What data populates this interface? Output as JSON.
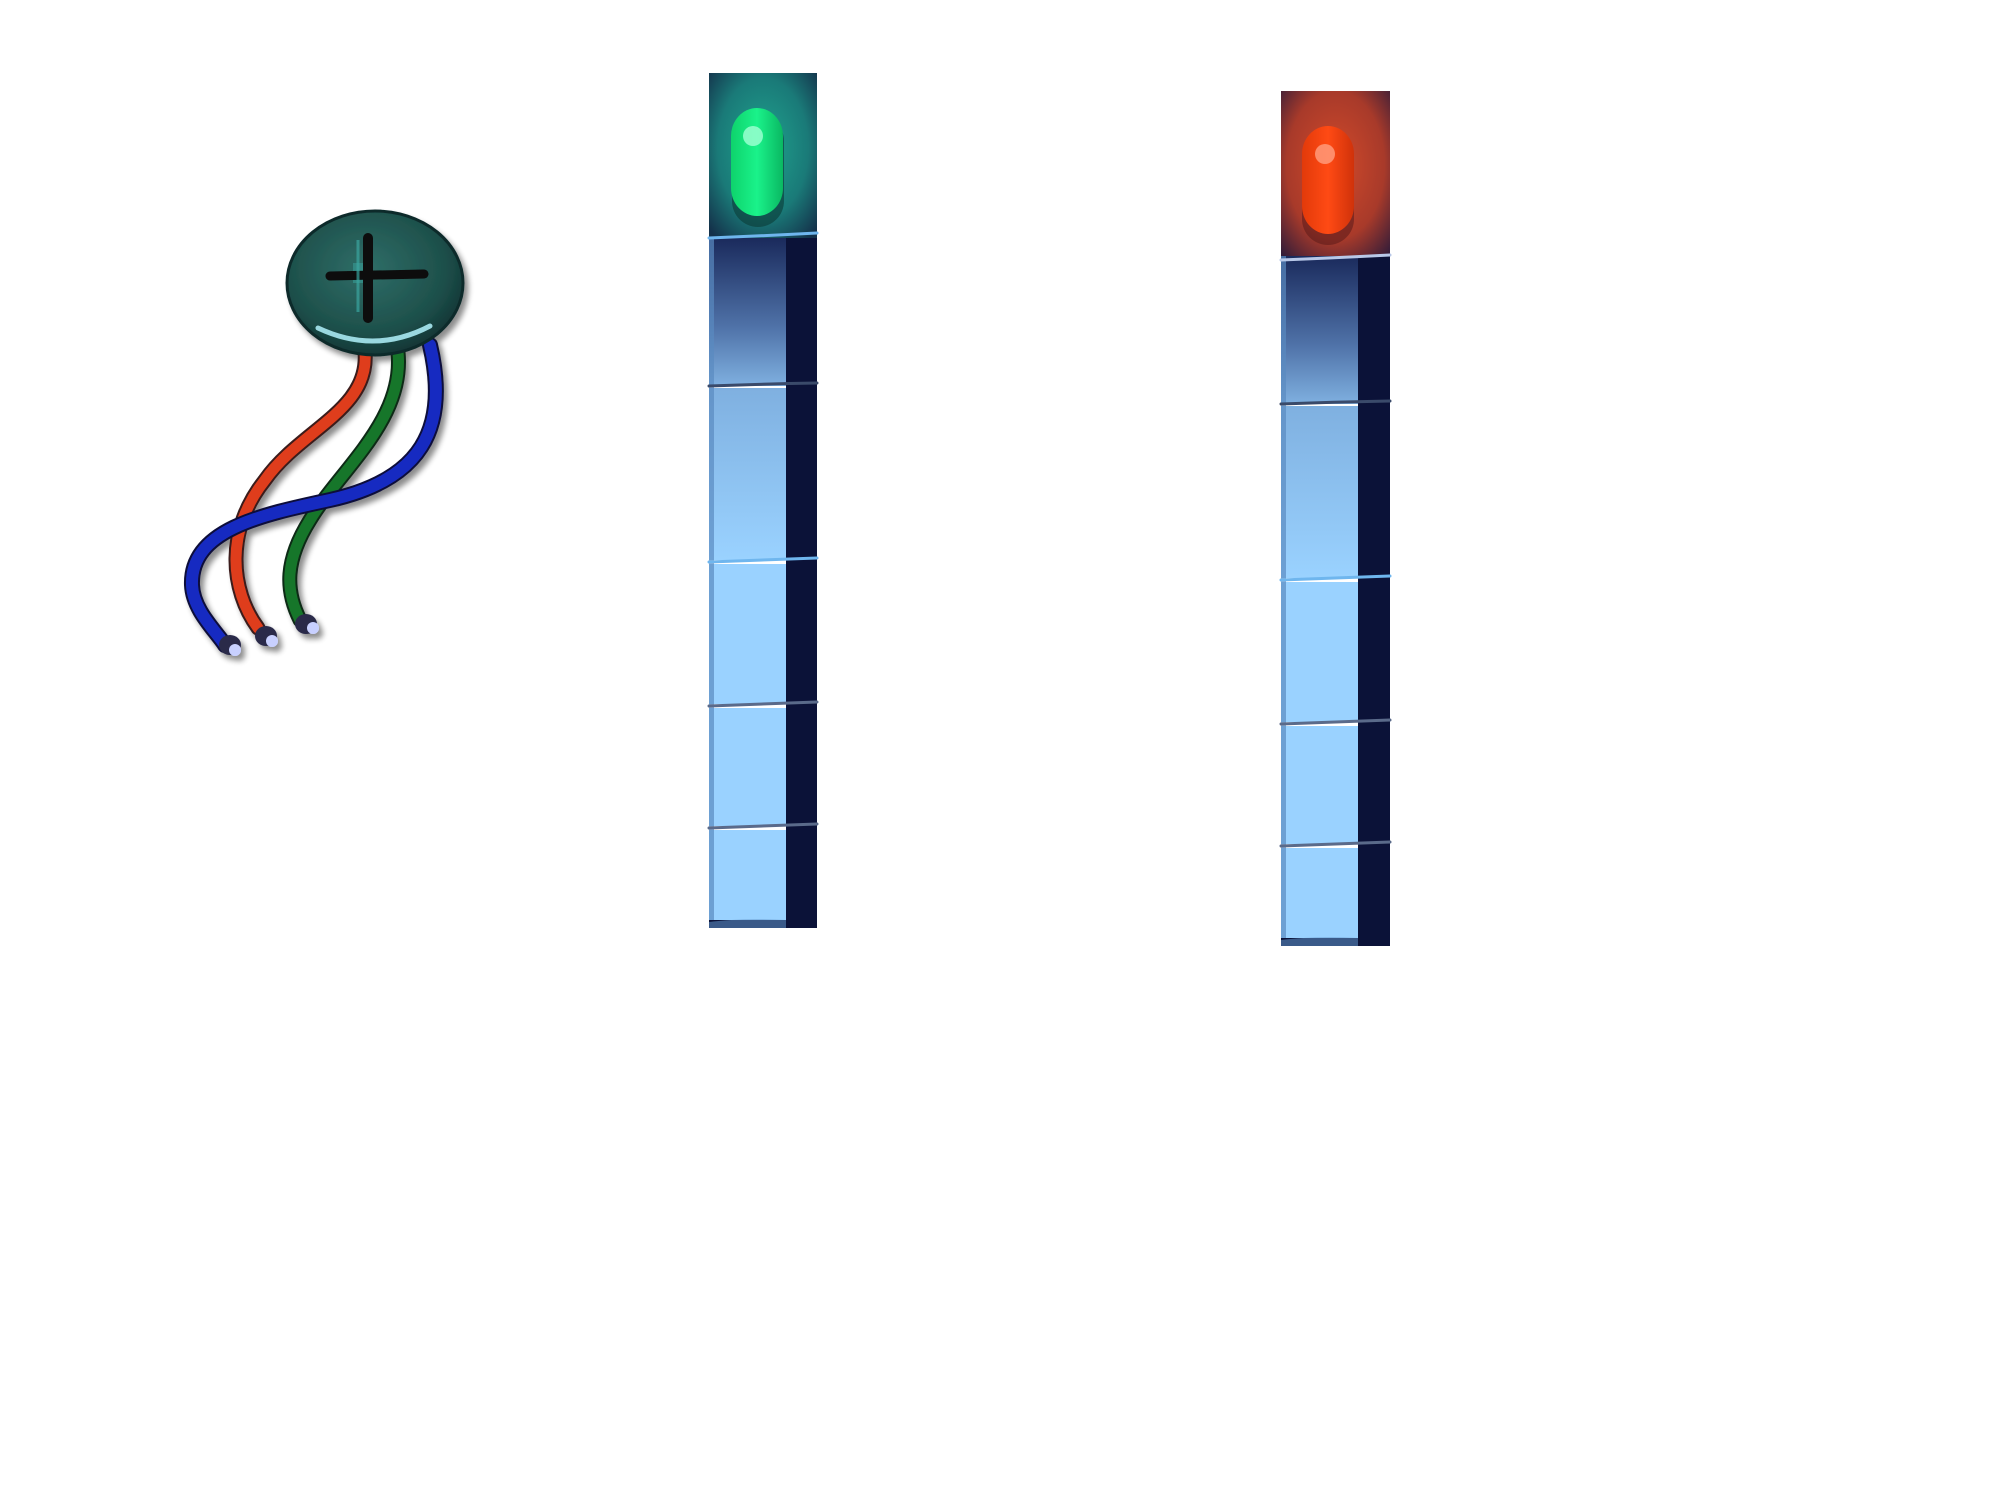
{
  "scene": {
    "background": "#ffffff"
  },
  "potentiometer": {
    "icon": "potentiometer-knob-icon",
    "knob_color": "#1d4f4a",
    "knob_highlight": "#9ad8e0",
    "wires": [
      {
        "name": "blue-wire",
        "color": "#1a2ec8"
      },
      {
        "name": "red-wire",
        "color": "#e8401a"
      },
      {
        "name": "green-wire",
        "color": "#1a7a2a"
      }
    ]
  },
  "meters": [
    {
      "name": "green-led-meter",
      "led_icon": "led-green-icon",
      "led_color": "#12e67a",
      "glow_color": "#1a7a78",
      "segments": 5
    },
    {
      "name": "red-led-meter",
      "led_icon": "led-red-icon",
      "led_color": "#f04010",
      "glow_color": "#a83a2a",
      "segments": 5
    }
  ],
  "strip_colors": {
    "segment": "#9ad2ff",
    "segment_dark": "#5a8ac0",
    "rail": "#0b1238",
    "divider": "#6fb6ee"
  }
}
